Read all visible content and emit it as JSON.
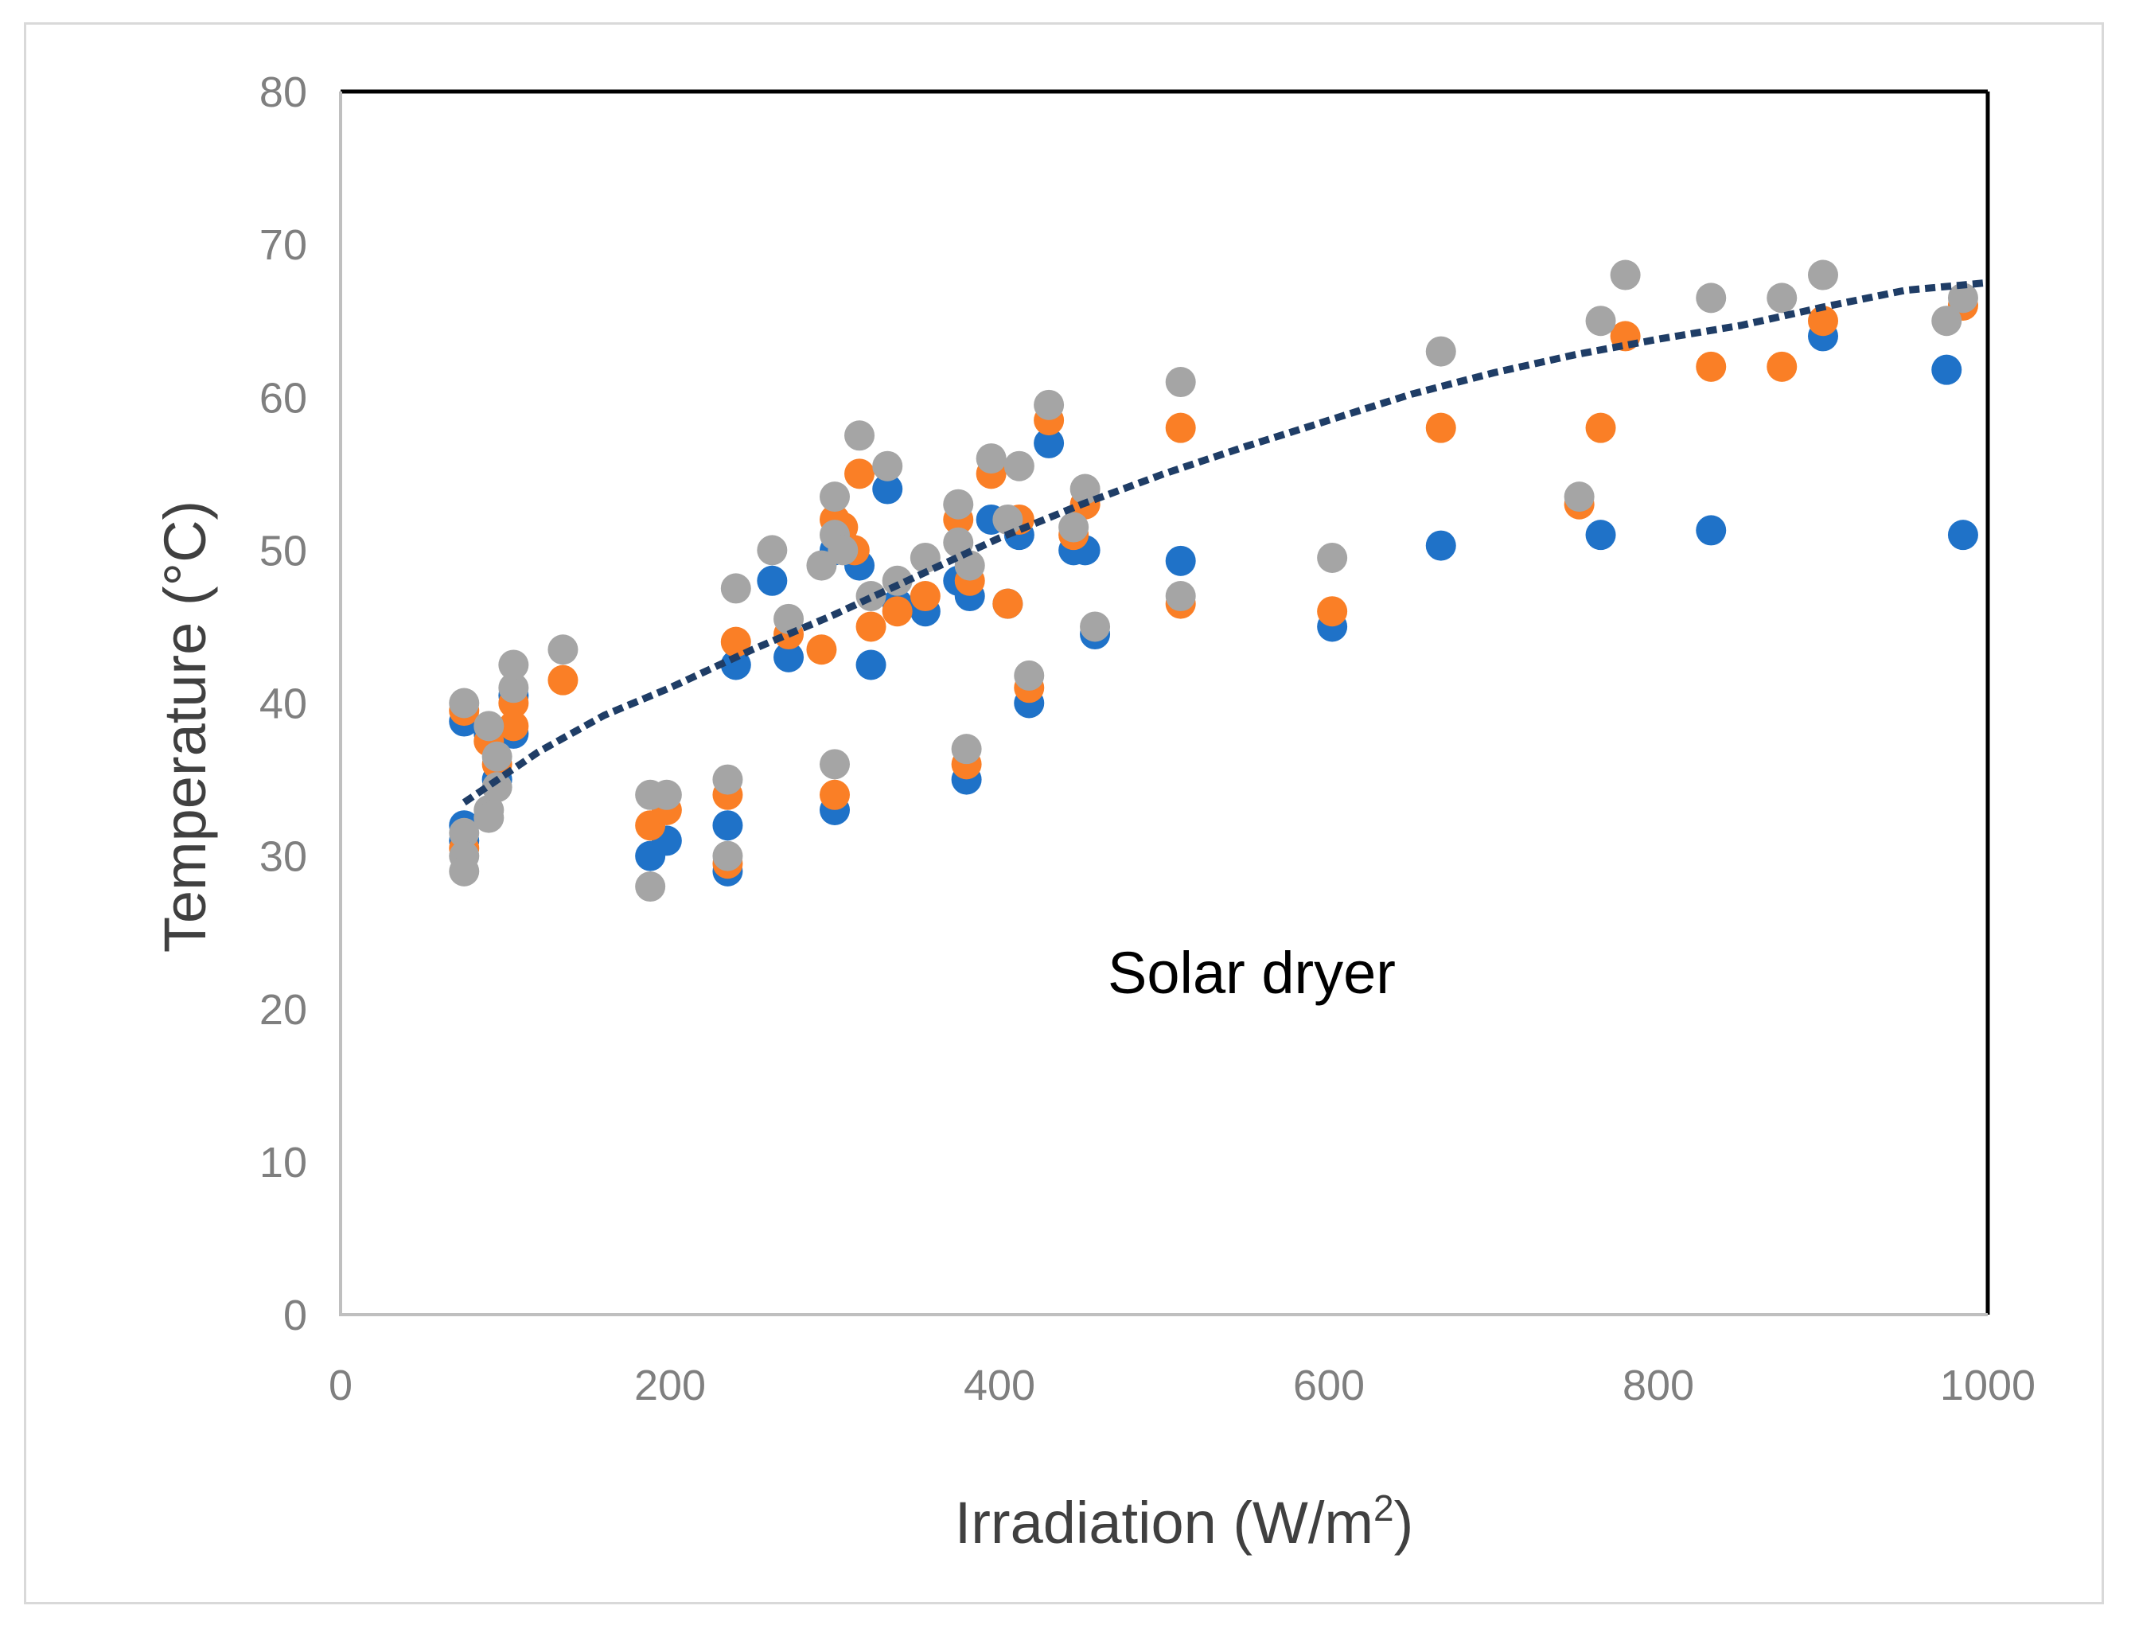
{
  "chart_data": {
    "type": "scatter",
    "title": "",
    "annotation": "Solar dryer",
    "xlabel": "Irradiation (W/m",
    "xlabel_superscript": "2",
    "xlabel_suffix": ")",
    "ylabel": "Temperature (°C)",
    "xlim": [
      0,
      1000
    ],
    "ylim": [
      0,
      80
    ],
    "x_ticks": [
      0,
      200,
      400,
      600,
      800,
      1000
    ],
    "y_ticks": [
      0,
      10,
      20,
      30,
      40,
      50,
      60,
      70,
      80
    ],
    "grid": false,
    "legend": "none",
    "series": [
      {
        "name": "series-1",
        "color": "#1f72c8",
        "points": [
          [
            75,
            38.8
          ],
          [
            75,
            32
          ],
          [
            75,
            31
          ],
          [
            90,
            38
          ],
          [
            95,
            35
          ],
          [
            105,
            38
          ],
          [
            105,
            40.5
          ],
          [
            188,
            30
          ],
          [
            198,
            31
          ],
          [
            235,
            29
          ],
          [
            235,
            32
          ],
          [
            240,
            42.5
          ],
          [
            262,
            48
          ],
          [
            272,
            43
          ],
          [
            300,
            33
          ],
          [
            300,
            50
          ],
          [
            305,
            50.5
          ],
          [
            315,
            49
          ],
          [
            322,
            42.5
          ],
          [
            332,
            54
          ],
          [
            338,
            46.5
          ],
          [
            355,
            46
          ],
          [
            375,
            48
          ],
          [
            380,
            35
          ],
          [
            382,
            47
          ],
          [
            395,
            52
          ],
          [
            405,
            46.5
          ],
          [
            412,
            51
          ],
          [
            418,
            40
          ],
          [
            430,
            57
          ],
          [
            445,
            50
          ],
          [
            452,
            50
          ],
          [
            458,
            44.5
          ],
          [
            510,
            49.3
          ],
          [
            602,
            45
          ],
          [
            668,
            50.3
          ],
          [
            765,
            51
          ],
          [
            832,
            51.3
          ],
          [
            900,
            64
          ],
          [
            975,
            61.8
          ],
          [
            985,
            51
          ]
        ]
      },
      {
        "name": "series-2",
        "color": "#fa7f26",
        "points": [
          [
            75,
            39.5
          ],
          [
            75,
            30.5
          ],
          [
            90,
            37.5
          ],
          [
            95,
            36
          ],
          [
            105,
            40
          ],
          [
            105,
            38.5
          ],
          [
            135,
            41.5
          ],
          [
            188,
            32
          ],
          [
            198,
            33
          ],
          [
            235,
            34
          ],
          [
            235,
            29.5
          ],
          [
            240,
            44
          ],
          [
            272,
            44.5
          ],
          [
            292,
            43.5
          ],
          [
            300,
            34
          ],
          [
            300,
            52
          ],
          [
            305,
            51.5
          ],
          [
            312,
            50
          ],
          [
            315,
            55
          ],
          [
            322,
            45
          ],
          [
            338,
            46
          ],
          [
            355,
            47
          ],
          [
            375,
            52
          ],
          [
            380,
            36
          ],
          [
            382,
            48
          ],
          [
            395,
            55
          ],
          [
            405,
            46.5
          ],
          [
            412,
            52
          ],
          [
            418,
            41
          ],
          [
            430,
            58.5
          ],
          [
            445,
            51
          ],
          [
            452,
            53
          ],
          [
            510,
            58
          ],
          [
            510,
            46.5
          ],
          [
            602,
            46
          ],
          [
            668,
            58
          ],
          [
            752,
            53
          ],
          [
            765,
            58
          ],
          [
            780,
            64
          ],
          [
            832,
            62
          ],
          [
            875,
            62
          ],
          [
            900,
            65
          ],
          [
            985,
            66
          ]
        ]
      },
      {
        "name": "series-3",
        "color": "#a5a5a5",
        "points": [
          [
            75,
            40
          ],
          [
            75,
            31.5
          ],
          [
            75,
            30
          ],
          [
            75,
            29
          ],
          [
            90,
            38.5
          ],
          [
            90,
            33
          ],
          [
            90,
            32.5
          ],
          [
            95,
            36.5
          ],
          [
            95,
            34.5
          ],
          [
            105,
            41
          ],
          [
            105,
            42.5
          ],
          [
            135,
            43.5
          ],
          [
            188,
            34
          ],
          [
            188,
            28
          ],
          [
            198,
            34
          ],
          [
            235,
            35
          ],
          [
            235,
            30
          ],
          [
            240,
            47.5
          ],
          [
            262,
            50
          ],
          [
            272,
            45.5
          ],
          [
            292,
            49
          ],
          [
            300,
            36
          ],
          [
            300,
            53.5
          ],
          [
            300,
            51
          ],
          [
            305,
            50
          ],
          [
            315,
            57.5
          ],
          [
            322,
            47
          ],
          [
            332,
            55.5
          ],
          [
            338,
            48
          ],
          [
            355,
            49.5
          ],
          [
            375,
            53
          ],
          [
            375,
            50.5
          ],
          [
            380,
            37
          ],
          [
            382,
            49
          ],
          [
            395,
            56
          ],
          [
            405,
            52
          ],
          [
            412,
            55.5
          ],
          [
            418,
            41.8
          ],
          [
            430,
            59.5
          ],
          [
            445,
            51.5
          ],
          [
            452,
            54
          ],
          [
            458,
            45
          ],
          [
            510,
            61
          ],
          [
            510,
            47
          ],
          [
            602,
            49.5
          ],
          [
            668,
            63
          ],
          [
            752,
            53.5
          ],
          [
            765,
            65
          ],
          [
            780,
            68
          ],
          [
            832,
            66.5
          ],
          [
            875,
            66.5
          ],
          [
            900,
            68
          ],
          [
            975,
            65
          ],
          [
            985,
            66.5
          ]
        ]
      }
    ],
    "trendline": {
      "name": "trendline",
      "color": "#1f3d66",
      "style": "dashed",
      "points": [
        [
          75,
          33.5
        ],
        [
          120,
          36.8
        ],
        [
          160,
          39.2
        ],
        [
          200,
          41
        ],
        [
          250,
          43.5
        ],
        [
          300,
          45.8
        ],
        [
          350,
          48.3
        ],
        [
          400,
          50.8
        ],
        [
          450,
          53
        ],
        [
          500,
          55
        ],
        [
          550,
          56.8
        ],
        [
          600,
          58.5
        ],
        [
          650,
          60.2
        ],
        [
          700,
          61.6
        ],
        [
          750,
          62.8
        ],
        [
          800,
          63.8
        ],
        [
          850,
          64.7
        ],
        [
          900,
          65.9
        ],
        [
          950,
          67
        ],
        [
          1000,
          67.5
        ]
      ]
    }
  }
}
